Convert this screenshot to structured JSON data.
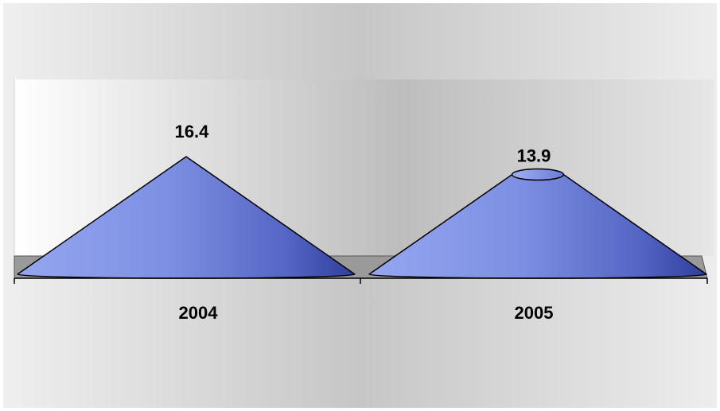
{
  "chart_data": {
    "type": "bar",
    "bar_shape": "cone-3d",
    "categories": [
      "2004",
      "2005"
    ],
    "series": [
      {
        "values": [
          16.4,
          13.9
        ]
      }
    ],
    "data_labels": [
      "16.4",
      "13.9"
    ],
    "ylim": [
      0,
      16.4
    ],
    "grid": false,
    "legend": "none",
    "colors": {
      "bar": "#7f93e6",
      "bar_dark": "#2f3e9a",
      "floor": "#9e9e9e",
      "background": "#d6d6d6"
    }
  }
}
